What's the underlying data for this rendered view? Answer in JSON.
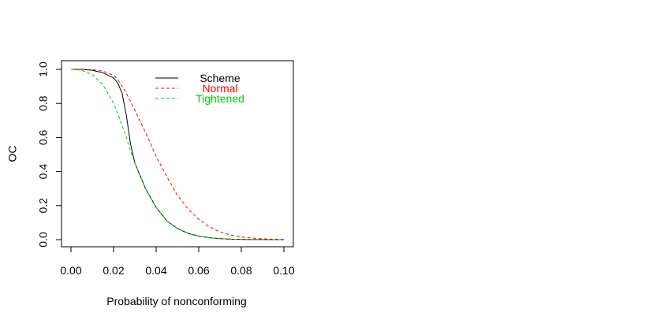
{
  "chart_data": {
    "type": "line",
    "title": "",
    "xlabel": "Probability of nonconforming",
    "ylabel": "OC",
    "xlim": [
      0,
      0.1
    ],
    "ylim": [
      0,
      1
    ],
    "x_ticks": [
      "0.00",
      "0.02",
      "0.04",
      "0.06",
      "0.08",
      "0.10"
    ],
    "y_ticks": [
      "0.0",
      "0.2",
      "0.4",
      "0.6",
      "0.8",
      "1.0"
    ],
    "grid": false,
    "legend_position": "top-right",
    "x": [
      0,
      0.005,
      0.01,
      0.015,
      0.02,
      0.022,
      0.024,
      0.026,
      0.028,
      0.03,
      0.035,
      0.04,
      0.045,
      0.05,
      0.055,
      0.06,
      0.065,
      0.07,
      0.075,
      0.08,
      0.085,
      0.09,
      0.095,
      0.1
    ],
    "series": [
      {
        "name": "Scheme",
        "color": "#000000",
        "dash": "solid",
        "values": [
          1.0,
          1.0,
          0.995,
          0.98,
          0.95,
          0.92,
          0.86,
          0.73,
          0.56,
          0.45,
          0.3,
          0.19,
          0.11,
          0.065,
          0.037,
          0.021,
          0.011,
          0.006,
          0.003,
          0.0015,
          0.0008,
          0.0004,
          0.0002,
          0.0001
        ]
      },
      {
        "name": "Normal",
        "color": "#ff0000",
        "dash": "dashed",
        "values": [
          1.0,
          1.0,
          0.998,
          0.99,
          0.965,
          0.94,
          0.9,
          0.86,
          0.81,
          0.76,
          0.63,
          0.49,
          0.37,
          0.26,
          0.18,
          0.12,
          0.075,
          0.045,
          0.027,
          0.016,
          0.009,
          0.005,
          0.0027,
          0.0015
        ]
      },
      {
        "name": "Tightened",
        "color": "#00cc00",
        "dash": "dashed",
        "values": [
          1.0,
          0.995,
          0.97,
          0.91,
          0.8,
          0.74,
          0.67,
          0.6,
          0.52,
          0.45,
          0.3,
          0.19,
          0.11,
          0.065,
          0.037,
          0.021,
          0.011,
          0.006,
          0.003,
          0.0015,
          0.0008,
          0.0004,
          0.0002,
          0.0001
        ]
      }
    ]
  }
}
